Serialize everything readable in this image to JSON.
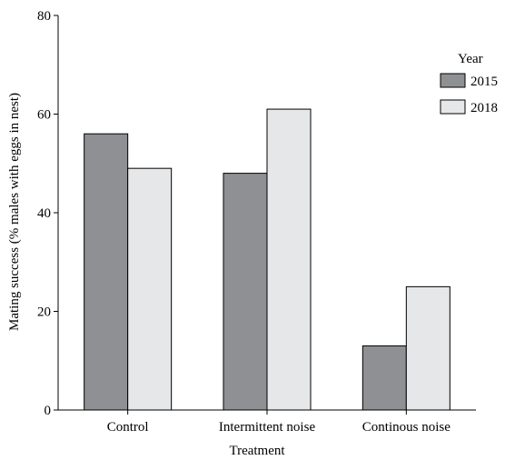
{
  "chart_data": {
    "type": "bar",
    "xlabel": "Treatment",
    "ylabel": "Mating success (% males with eggs in nest)",
    "ylim": [
      0,
      80
    ],
    "yticks": [
      0,
      20,
      40,
      60,
      80
    ],
    "grid": false,
    "legend_placement": "right",
    "legend_title": "Year",
    "categories": [
      "Control",
      "Intermittent noise",
      "Continous noise"
    ],
    "series": [
      {
        "name": "2015",
        "color": "#8e9093",
        "values": [
          56,
          48,
          13
        ]
      },
      {
        "name": "2018",
        "color": "#e6e7e8",
        "values": [
          49,
          61,
          25
        ]
      }
    ]
  }
}
